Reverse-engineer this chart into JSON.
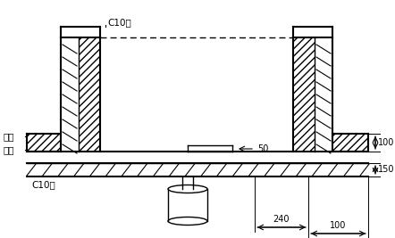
{
  "bg_color": "#ffffff",
  "line_color": "#000000",
  "label_c10_top": "C10牀",
  "label_c10_bot": "C10牀",
  "label_shiceng": "石屑",
  "label_tianshi": "填实",
  "dim_50": "50",
  "dim_100_right": "100",
  "dim_150": "150",
  "dim_240": "240",
  "dim_100_bot": "100",
  "figsize": [
    4.42,
    2.67
  ],
  "dpi": 100
}
